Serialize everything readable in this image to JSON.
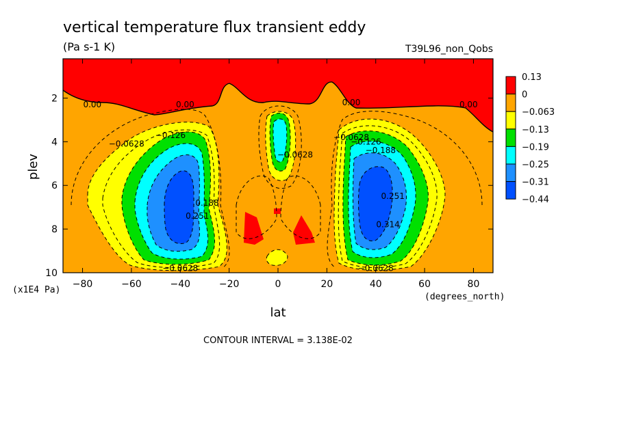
{
  "chart_data": {
    "type": "contour",
    "title": "vertical temperature flux transient eddy",
    "units": "(Pa s-1 K)",
    "run_label": "T39L96_non_Qobs",
    "xlabel": "lat",
    "x_units": "(degrees_north)",
    "ylabel": "plev",
    "y_units": "(x1E4 Pa)",
    "xlim": [
      -88,
      88
    ],
    "ylim": [
      10,
      0.2
    ],
    "x_ticks": [
      "−80",
      "−60",
      "−40",
      "−20",
      "0",
      "20",
      "40",
      "60",
      "80"
    ],
    "x_tick_values": [
      -80,
      -60,
      -40,
      -20,
      0,
      20,
      40,
      60,
      80
    ],
    "y_ticks": [
      "2",
      "4",
      "6",
      "8",
      "10"
    ],
    "y_tick_values": [
      2,
      4,
      6,
      8,
      10
    ],
    "contour_interval_text": "CONTOUR INTERVAL = 3.138E-02",
    "legend": {
      "placement": "right",
      "labels": [
        "0.13",
        "0",
        "−0.063",
        "−0.13",
        "−0.19",
        "−0.25",
        "−0.31",
        "−0.44"
      ],
      "colors": [
        "#ff0000",
        "#ffa500",
        "#ffff00",
        "#00e000",
        "#00ffff",
        "#1e90ff",
        "#0050ff"
      ]
    },
    "contour_labels": [
      {
        "text": "0.00",
        "lat": -76,
        "plev": 2.3
      },
      {
        "text": "0.00",
        "lat": -38,
        "plev": 2.3
      },
      {
        "text": "0.00",
        "lat": 30,
        "plev": 2.2
      },
      {
        "text": "0.00",
        "lat": 78,
        "plev": 2.3
      },
      {
        "text": "−0.0628",
        "lat": -62,
        "plev": 4.1
      },
      {
        "text": "−0.126",
        "lat": -44,
        "plev": 3.7
      },
      {
        "text": "−0.0628",
        "lat": 30,
        "plev": 3.8
      },
      {
        "text": "−0.126",
        "lat": 36,
        "plev": 4.0
      },
      {
        "text": "−0.188",
        "lat": 42,
        "plev": 4.4
      },
      {
        "text": "−0.0628",
        "lat": 7,
        "plev": 4.6
      },
      {
        "text": "0.188",
        "lat": -29,
        "plev": 6.8
      },
      {
        "text": "0.251",
        "lat": -33,
        "plev": 7.4
      },
      {
        "text": "0.251",
        "lat": 47,
        "plev": 6.5
      },
      {
        "text": "0.314",
        "lat": 45,
        "plev": 7.8
      },
      {
        "text": "−0.0628",
        "lat": -40,
        "plev": 9.8
      },
      {
        "text": "−0.0628",
        "lat": 40,
        "plev": 9.8
      }
    ]
  }
}
